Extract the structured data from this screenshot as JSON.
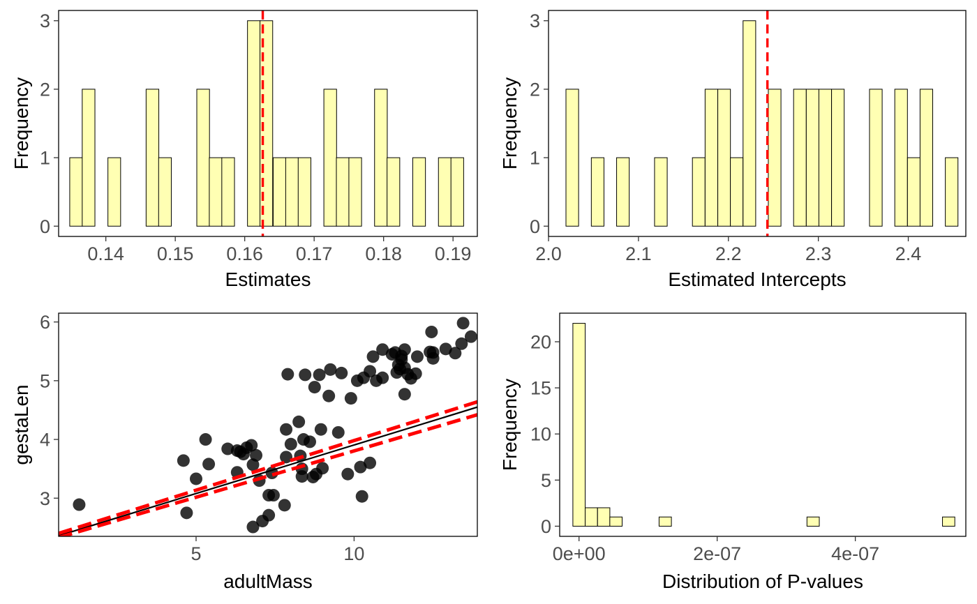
{
  "chart_data": [
    {
      "type": "bar",
      "subtype": "histogram",
      "xlabel": "Estimates",
      "ylabel": "Frequency",
      "xlim": [
        0.1332,
        0.1935
      ],
      "ylim": [
        -0.15,
        3.15
      ],
      "x_ticks": [
        0.14,
        0.15,
        0.16,
        0.17,
        0.18,
        0.19
      ],
      "x_tick_labels": [
        "0.14",
        "0.15",
        "0.16",
        "0.17",
        "0.18",
        "0.19"
      ],
      "y_ticks": [
        0,
        1,
        2,
        3
      ],
      "y_tick_labels": [
        "0",
        "1",
        "2",
        "3"
      ],
      "bin_width": 0.001828,
      "bins": [
        {
          "x0": 0.1348,
          "count": 1
        },
        {
          "x0": 0.1366,
          "count": 2
        },
        {
          "x0": 0.1384,
          "count": 0
        },
        {
          "x0": 0.1403,
          "count": 1
        },
        {
          "x0": 0.1421,
          "count": 0
        },
        {
          "x0": 0.1439,
          "count": 0
        },
        {
          "x0": 0.1458,
          "count": 2
        },
        {
          "x0": 0.1476,
          "count": 1
        },
        {
          "x0": 0.1494,
          "count": 0
        },
        {
          "x0": 0.1513,
          "count": 0
        },
        {
          "x0": 0.1531,
          "count": 2
        },
        {
          "x0": 0.1549,
          "count": 1
        },
        {
          "x0": 0.1567,
          "count": 1
        },
        {
          "x0": 0.1586,
          "count": 0
        },
        {
          "x0": 0.1604,
          "count": 3
        },
        {
          "x0": 0.1622,
          "count": 3
        },
        {
          "x0": 0.1641,
          "count": 1
        },
        {
          "x0": 0.1659,
          "count": 1
        },
        {
          "x0": 0.1677,
          "count": 1
        },
        {
          "x0": 0.1696,
          "count": 0
        },
        {
          "x0": 0.1714,
          "count": 2
        },
        {
          "x0": 0.1732,
          "count": 1
        },
        {
          "x0": 0.175,
          "count": 1
        },
        {
          "x0": 0.1769,
          "count": 0
        },
        {
          "x0": 0.1787,
          "count": 2
        },
        {
          "x0": 0.1805,
          "count": 1
        },
        {
          "x0": 0.1824,
          "count": 0
        },
        {
          "x0": 0.1842,
          "count": 1
        },
        {
          "x0": 0.186,
          "count": 0
        },
        {
          "x0": 0.1879,
          "count": 1
        },
        {
          "x0": 0.1897,
          "count": 1
        }
      ],
      "vline": {
        "x": 0.1626,
        "color": "#ff0000",
        "style": "dashed"
      },
      "bar_fill": "#ffffb3",
      "grid": false
    },
    {
      "type": "bar",
      "subtype": "histogram",
      "xlabel": "Estimated Intercepts",
      "ylabel": "Frequency",
      "xlim": [
        2.0,
        2.464
      ],
      "ylim": [
        -0.15,
        3.15
      ],
      "x_ticks": [
        2.0,
        2.1,
        2.2,
        2.3,
        2.4
      ],
      "x_tick_labels": [
        "2.0",
        "2.1",
        "2.2",
        "2.3",
        "2.4"
      ],
      "y_ticks": [
        0,
        1,
        2,
        3
      ],
      "y_tick_labels": [
        "0",
        "1",
        "2",
        "3"
      ],
      "bin_width": 0.01406,
      "bins": [
        {
          "x0": 2.0194,
          "count": 2
        },
        {
          "x0": 2.0335,
          "count": 0
        },
        {
          "x0": 2.0476,
          "count": 1
        },
        {
          "x0": 2.0616,
          "count": 0
        },
        {
          "x0": 2.0757,
          "count": 1
        },
        {
          "x0": 2.0897,
          "count": 0
        },
        {
          "x0": 2.1038,
          "count": 0
        },
        {
          "x0": 2.1179,
          "count": 1
        },
        {
          "x0": 2.1319,
          "count": 0
        },
        {
          "x0": 2.146,
          "count": 0
        },
        {
          "x0": 2.16,
          "count": 1
        },
        {
          "x0": 2.1741,
          "count": 2
        },
        {
          "x0": 2.1882,
          "count": 2
        },
        {
          "x0": 2.2022,
          "count": 1
        },
        {
          "x0": 2.2163,
          "count": 3
        },
        {
          "x0": 2.2303,
          "count": 0
        },
        {
          "x0": 2.2444,
          "count": 2
        },
        {
          "x0": 2.2585,
          "count": 0
        },
        {
          "x0": 2.2725,
          "count": 2
        },
        {
          "x0": 2.2866,
          "count": 2
        },
        {
          "x0": 2.3006,
          "count": 2
        },
        {
          "x0": 2.3147,
          "count": 2
        },
        {
          "x0": 2.3288,
          "count": 0
        },
        {
          "x0": 2.3428,
          "count": 0
        },
        {
          "x0": 2.3569,
          "count": 2
        },
        {
          "x0": 2.3709,
          "count": 0
        },
        {
          "x0": 2.385,
          "count": 2
        },
        {
          "x0": 2.3991,
          "count": 1
        },
        {
          "x0": 2.4131,
          "count": 2
        },
        {
          "x0": 2.4272,
          "count": 0
        },
        {
          "x0": 2.4412,
          "count": 1
        }
      ],
      "vline": {
        "x": 2.2434,
        "color": "#ff0000",
        "style": "dashed"
      },
      "bar_fill": "#ffffb3",
      "grid": false
    },
    {
      "type": "scatter",
      "xlabel": "adultMass",
      "ylabel": "gestaLen",
      "xlim": [
        0.65,
        13.9
      ],
      "ylim": [
        2.35,
        6.15
      ],
      "x_ticks": [
        5,
        10
      ],
      "x_tick_labels": [
        "5",
        "10"
      ],
      "y_ticks": [
        3,
        4,
        5,
        6
      ],
      "y_tick_labels": [
        "3",
        "4",
        "5",
        "6"
      ],
      "points": [
        [
          1.3,
          2.89
        ],
        [
          4.6,
          3.64
        ],
        [
          4.7,
          2.75
        ],
        [
          5.0,
          3.33
        ],
        [
          5.3,
          4.0
        ],
        [
          5.4,
          3.58
        ],
        [
          6.0,
          3.84
        ],
        [
          6.3,
          3.81
        ],
        [
          6.3,
          3.44
        ],
        [
          6.4,
          3.79
        ],
        [
          6.5,
          3.75
        ],
        [
          6.6,
          3.86
        ],
        [
          6.75,
          3.9
        ],
        [
          6.8,
          3.57
        ],
        [
          6.9,
          3.73
        ],
        [
          7.0,
          3.3
        ],
        [
          6.8,
          2.51
        ],
        [
          7.1,
          2.61
        ],
        [
          7.3,
          2.71
        ],
        [
          7.3,
          3.05
        ],
        [
          7.45,
          3.05
        ],
        [
          7.4,
          3.43
        ],
        [
          7.8,
          2.88
        ],
        [
          7.85,
          3.7
        ],
        [
          7.85,
          4.17
        ],
        [
          7.9,
          5.11
        ],
        [
          8.0,
          3.92
        ],
        [
          8.25,
          4.3
        ],
        [
          8.3,
          3.72
        ],
        [
          8.35,
          3.5
        ],
        [
          8.35,
          3.37
        ],
        [
          8.4,
          4.0
        ],
        [
          8.45,
          5.1
        ],
        [
          8.6,
          3.96
        ],
        [
          8.7,
          3.36
        ],
        [
          8.8,
          3.41
        ],
        [
          8.75,
          4.89
        ],
        [
          8.9,
          5.1
        ],
        [
          9.0,
          3.51
        ],
        [
          8.95,
          4.17
        ],
        [
          9.2,
          4.74
        ],
        [
          9.25,
          5.19
        ],
        [
          9.5,
          4.12
        ],
        [
          9.6,
          5.13
        ],
        [
          9.8,
          3.41
        ],
        [
          9.9,
          4.7
        ],
        [
          10.1,
          5.0
        ],
        [
          10.3,
          5.05
        ],
        [
          10.2,
          3.53
        ],
        [
          10.25,
          3.03
        ],
        [
          10.5,
          3.6
        ],
        [
          10.5,
          5.16
        ],
        [
          10.6,
          5.41
        ],
        [
          10.7,
          5.0
        ],
        [
          10.9,
          5.05
        ],
        [
          10.9,
          5.53
        ],
        [
          11.2,
          5.45
        ],
        [
          11.3,
          5.48
        ],
        [
          11.35,
          5.14
        ],
        [
          11.4,
          5.27
        ],
        [
          11.45,
          5.2
        ],
        [
          11.5,
          5.42
        ],
        [
          11.5,
          5.36
        ],
        [
          11.6,
          5.53
        ],
        [
          11.6,
          5.22
        ],
        [
          11.7,
          5.11
        ],
        [
          11.6,
          4.77
        ],
        [
          11.8,
          5.04
        ],
        [
          11.95,
          5.12
        ],
        [
          12.0,
          5.41
        ],
        [
          12.4,
          5.49
        ],
        [
          12.45,
          5.83
        ],
        [
          12.5,
          5.38
        ],
        [
          12.5,
          5.48
        ],
        [
          12.9,
          5.54
        ],
        [
          13.2,
          5.47
        ],
        [
          13.4,
          5.63
        ],
        [
          13.45,
          5.98
        ],
        [
          13.7,
          5.75
        ]
      ],
      "point_color": "#000000",
      "lines": [
        {
          "x": [
            0.65,
            13.9
          ],
          "y": [
            2.36,
            4.55
          ],
          "color": "#000000",
          "style": "solid"
        },
        {
          "x": [
            0.65,
            13.9
          ],
          "y": [
            2.4,
            4.64
          ],
          "color": "#ff0000",
          "style": "dashed"
        },
        {
          "x": [
            0.65,
            13.9
          ],
          "y": [
            2.33,
            4.42
          ],
          "color": "#ff0000",
          "style": "dashed"
        }
      ],
      "grid": false
    },
    {
      "type": "bar",
      "subtype": "histogram",
      "xlabel": "Distribution of P-values",
      "ylabel": "Frequency",
      "xlim": [
        -2.8e-08,
        5.6e-07
      ],
      "ylim": [
        -1.1,
        23.1
      ],
      "x_ticks": [
        0,
        2e-07,
        4e-07
      ],
      "x_tick_labels": [
        "0e+00",
        "2e-07",
        "4e-07"
      ],
      "y_ticks": [
        0,
        5,
        10,
        15,
        20
      ],
      "y_tick_labels": [
        "0",
        "5",
        "10",
        "15",
        "20"
      ],
      "bin_width": 1.7835e-08,
      "bins": [
        {
          "x0": -8.9e-09,
          "count": 22
        },
        {
          "x0": 8.9e-09,
          "count": 2
        },
        {
          "x0": 2.68e-08,
          "count": 2
        },
        {
          "x0": 4.46e-08,
          "count": 1
        },
        {
          "x0": 6.24e-08,
          "count": 0
        },
        {
          "x0": 8.03e-08,
          "count": 0
        },
        {
          "x0": 9.81e-08,
          "count": 0
        },
        {
          "x0": 1.159e-07,
          "count": 1
        },
        {
          "x0": 1.338e-07,
          "count": 0
        },
        {
          "x0": 1.516e-07,
          "count": 0
        },
        {
          "x0": 1.694e-07,
          "count": 0
        },
        {
          "x0": 1.873e-07,
          "count": 0
        },
        {
          "x0": 2.051e-07,
          "count": 0
        },
        {
          "x0": 2.23e-07,
          "count": 0
        },
        {
          "x0": 2.408e-07,
          "count": 0
        },
        {
          "x0": 2.586e-07,
          "count": 0
        },
        {
          "x0": 2.765e-07,
          "count": 0
        },
        {
          "x0": 2.943e-07,
          "count": 0
        },
        {
          "x0": 3.121e-07,
          "count": 0
        },
        {
          "x0": 3.3e-07,
          "count": 1
        },
        {
          "x0": 3.478e-07,
          "count": 0
        },
        {
          "x0": 3.657e-07,
          "count": 0
        },
        {
          "x0": 3.835e-07,
          "count": 0
        },
        {
          "x0": 4.013e-07,
          "count": 0
        },
        {
          "x0": 4.192e-07,
          "count": 0
        },
        {
          "x0": 4.37e-07,
          "count": 0
        },
        {
          "x0": 4.548e-07,
          "count": 0
        },
        {
          "x0": 4.727e-07,
          "count": 0
        },
        {
          "x0": 4.905e-07,
          "count": 0
        },
        {
          "x0": 5.084e-07,
          "count": 0
        },
        {
          "x0": 5.262e-07,
          "count": 1
        }
      ],
      "bar_fill": "#ffffb3",
      "grid": false
    }
  ]
}
